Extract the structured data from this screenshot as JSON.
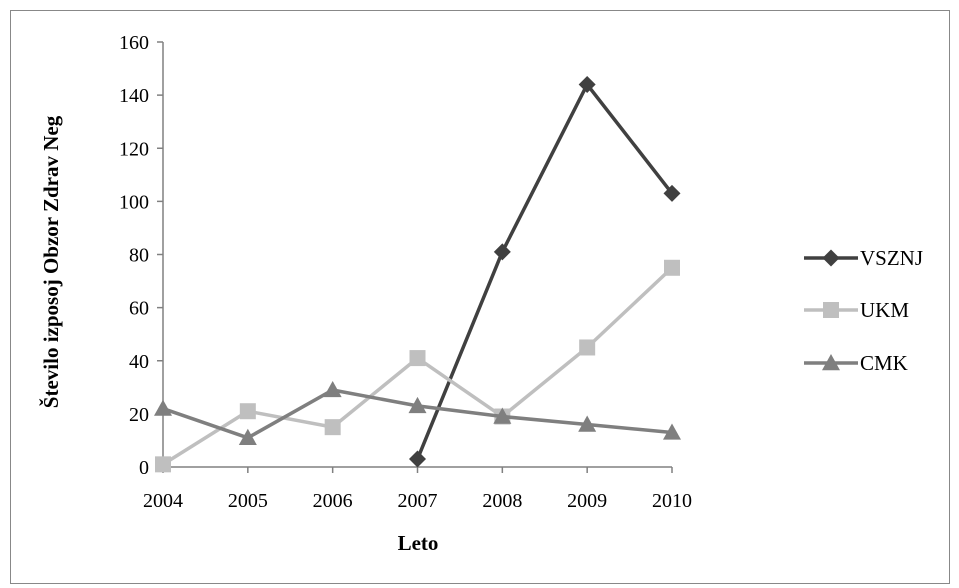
{
  "chart_data": {
    "type": "line",
    "title": "",
    "xlabel": "Leto",
    "ylabel": "Število izposoj Obzor Zdrav Neg",
    "categories": [
      "2004",
      "2005",
      "2006",
      "2007",
      "2008",
      "2009",
      "2010"
    ],
    "ylim": [
      0,
      160
    ],
    "yticks": [
      0,
      20,
      40,
      60,
      80,
      100,
      120,
      140,
      160
    ],
    "grid": false,
    "legend_position": "right",
    "series": [
      {
        "name": "VSZNJ",
        "color": "#404040",
        "marker": "diamond",
        "values": [
          null,
          null,
          null,
          3,
          81,
          144,
          103
        ]
      },
      {
        "name": "UKM",
        "color": "#bfbfbf",
        "marker": "square",
        "values": [
          1,
          21,
          15,
          41,
          19,
          45,
          75
        ]
      },
      {
        "name": "CMK",
        "color": "#7f7f7f",
        "marker": "triangle",
        "values": [
          22,
          11,
          29,
          23,
          19,
          16,
          13
        ]
      }
    ]
  }
}
